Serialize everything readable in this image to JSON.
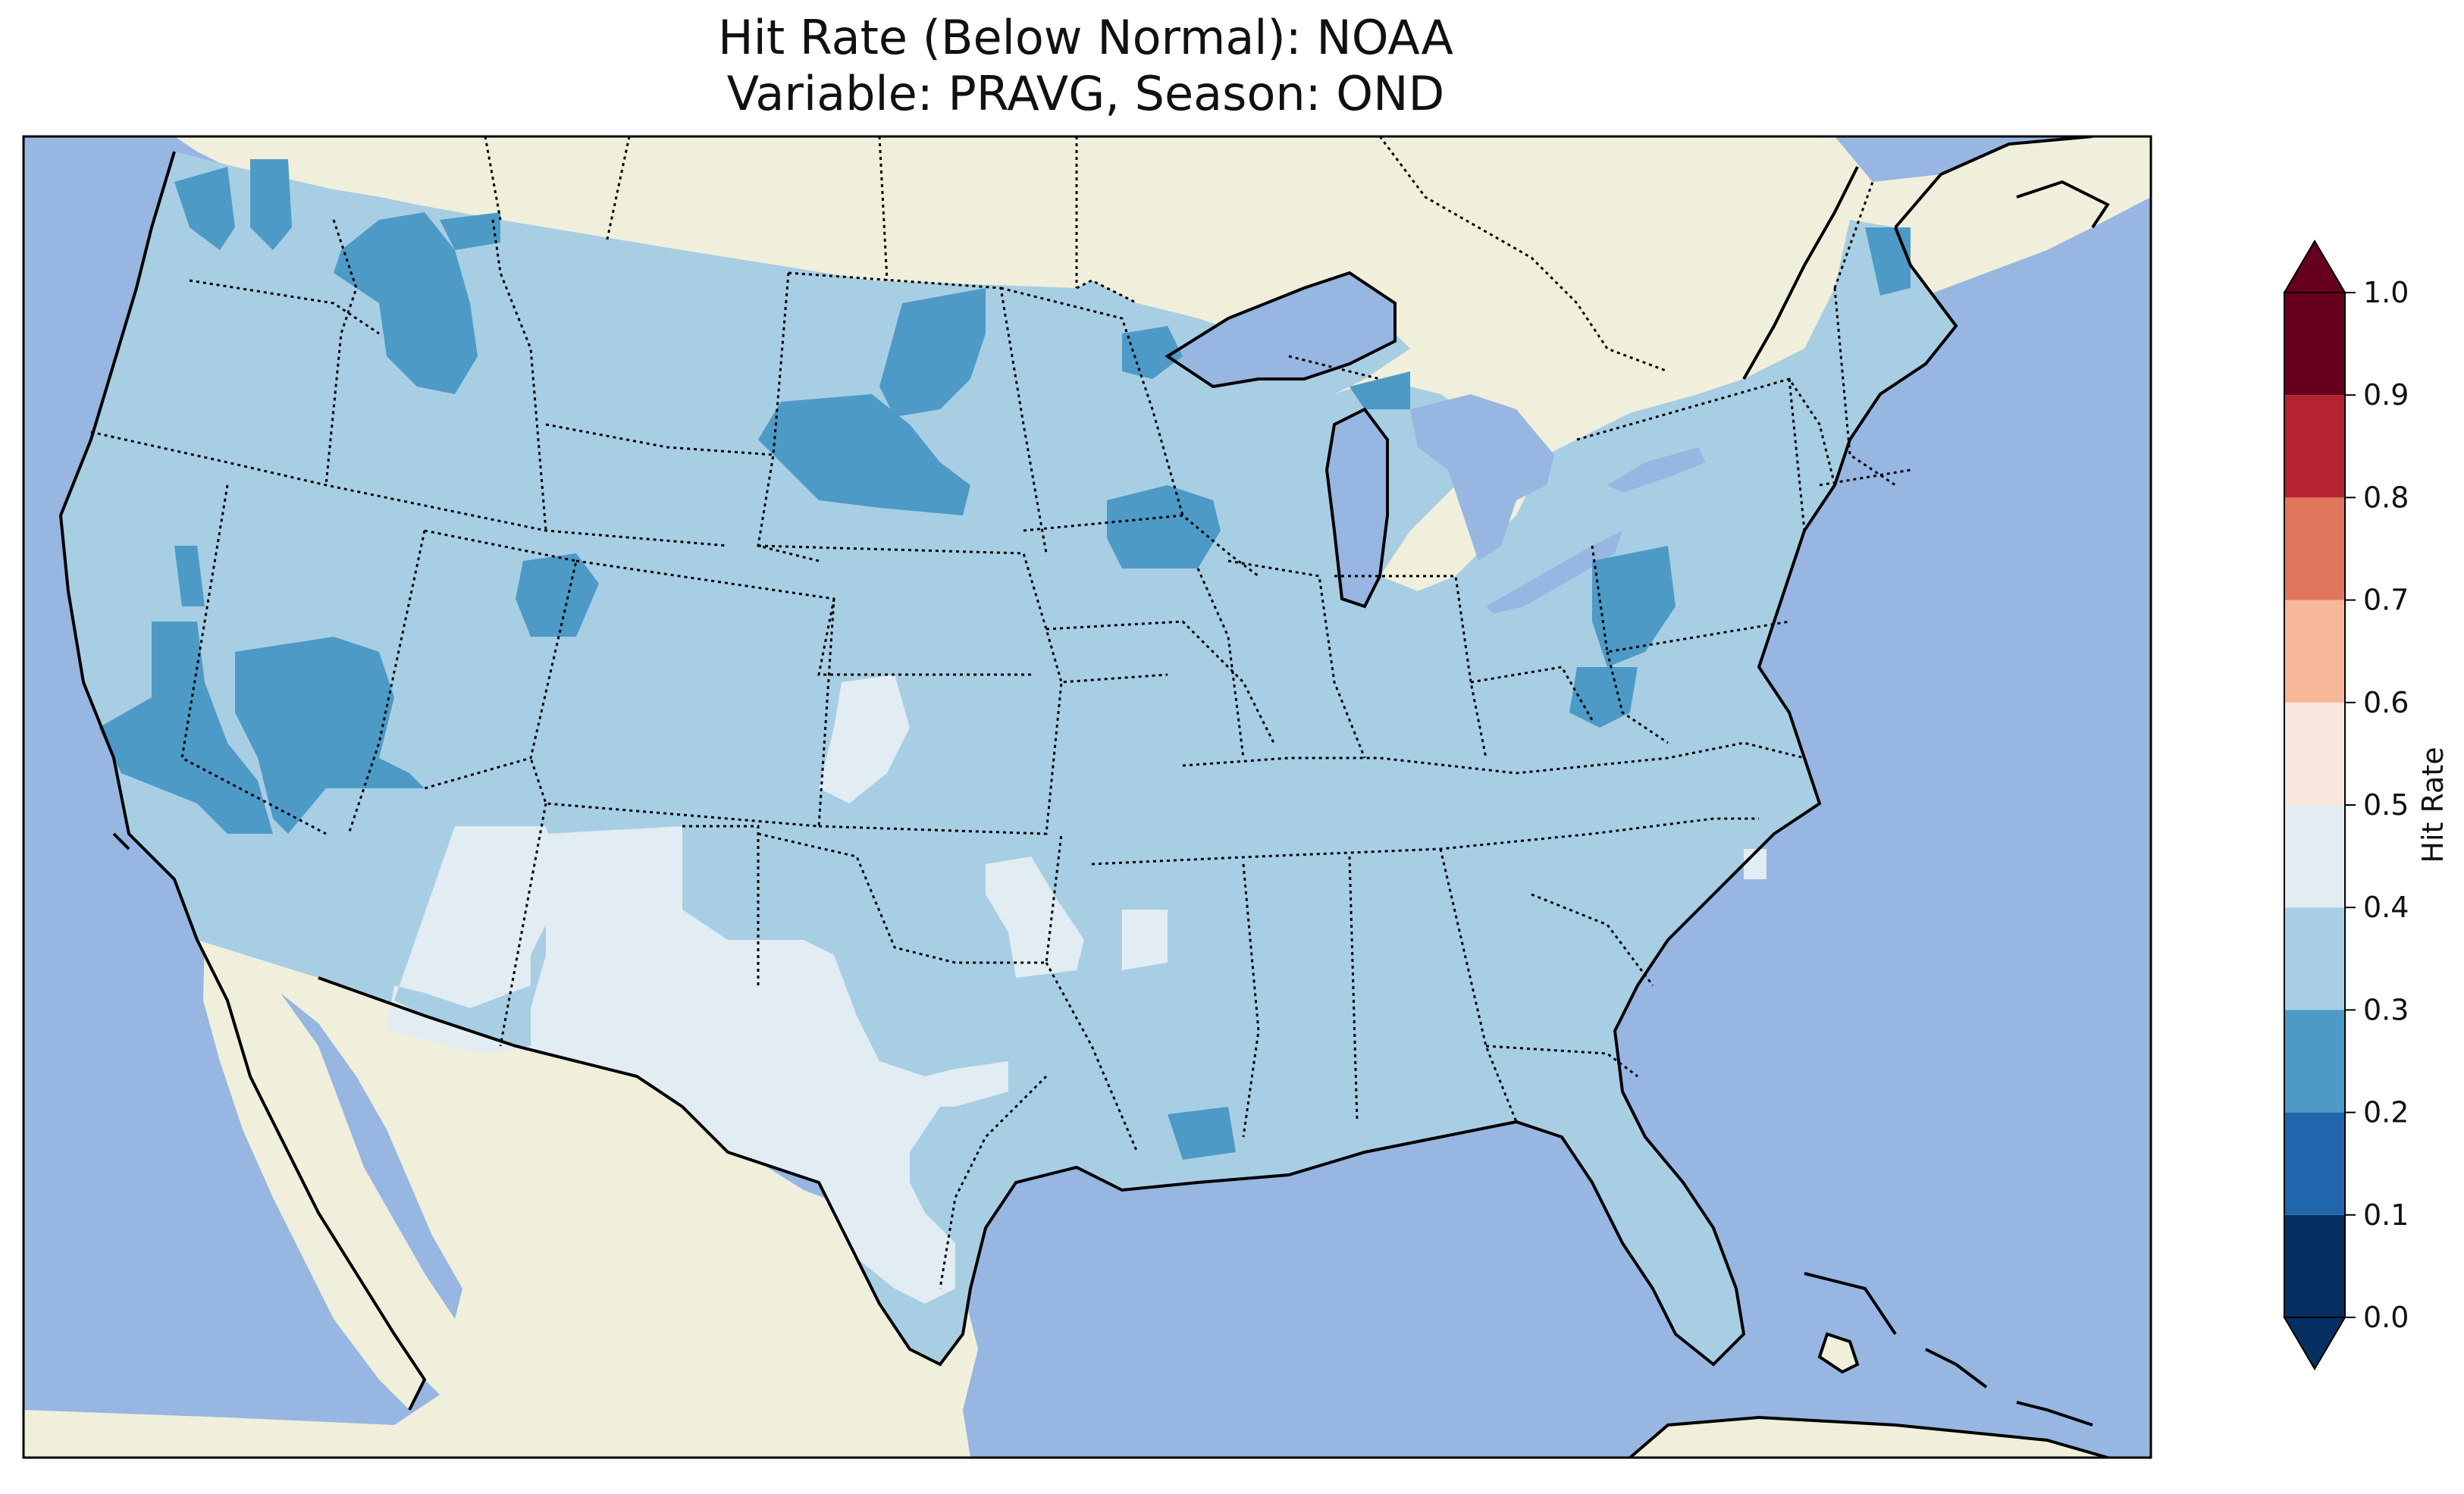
{
  "title": {
    "line1": "Hit Rate (Below Normal): NOAA",
    "line2": "Variable: PRAVG, Season: OND"
  },
  "map": {
    "ocean_color": "#97b6e1",
    "land_color": "#efefdb",
    "description_region": "Contiguous United States"
  },
  "colorbar": {
    "label": "Hit Rate",
    "ticks": [
      "0.0",
      "0.1",
      "0.2",
      "0.3",
      "0.4",
      "0.5",
      "0.6",
      "0.7",
      "0.8",
      "0.9",
      "1.0"
    ],
    "colors": [
      "#053061",
      "#2166ac",
      "#4393c3",
      "#92c5de",
      "#d1e5f0",
      "#f7f7f7",
      "#fddbc7",
      "#f4a582",
      "#d6604d",
      "#b2182b",
      "#67001f"
    ],
    "bins": [
      {
        "range": [
          0.0,
          0.1
        ],
        "color": "#053061"
      },
      {
        "range": [
          0.1,
          0.2
        ],
        "color": "#2166ac"
      },
      {
        "range": [
          0.2,
          0.3
        ],
        "color": "#4d9ac7"
      },
      {
        "range": [
          0.3,
          0.4
        ],
        "color": "#a8cee4"
      },
      {
        "range": [
          0.4,
          0.5
        ],
        "color": "#e1ecf3"
      },
      {
        "range": [
          0.5,
          0.6
        ],
        "color": "#f9e7dd"
      },
      {
        "range": [
          0.6,
          0.7
        ],
        "color": "#f6b898"
      },
      {
        "range": [
          0.7,
          0.8
        ],
        "color": "#e0775c"
      },
      {
        "range": [
          0.8,
          0.9
        ],
        "color": "#b72230"
      },
      {
        "range": [
          0.9,
          1.0
        ],
        "color": "#67001f"
      }
    ],
    "extend": "both"
  }
}
